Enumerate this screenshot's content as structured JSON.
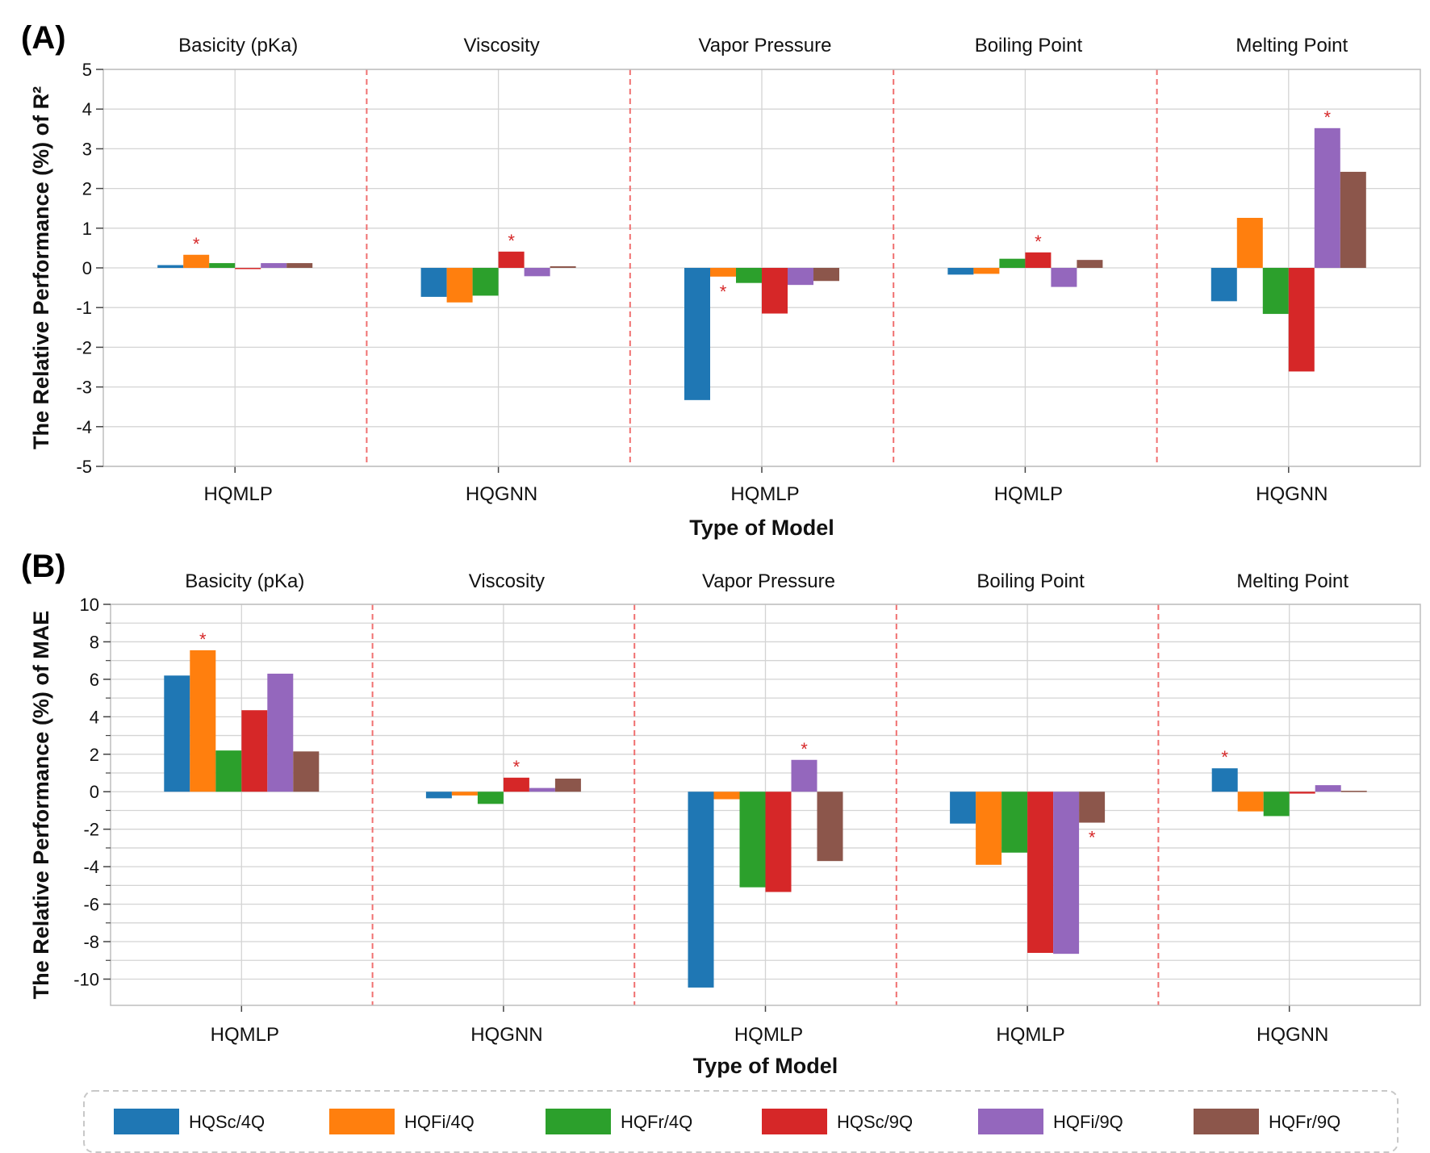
{
  "legend": [
    {
      "name": "HQSc/4Q",
      "color": "#1f77b4"
    },
    {
      "name": "HQFi/4Q",
      "color": "#ff7f0e"
    },
    {
      "name": "HQFr/4Q",
      "color": "#2ca02c"
    },
    {
      "name": "HQSc/9Q",
      "color": "#d62728"
    },
    {
      "name": "HQFi/9Q",
      "color": "#9467bd"
    },
    {
      "name": "HQFr/9Q",
      "color": "#8c564b"
    }
  ],
  "chart_data": [
    {
      "panel": "(A)",
      "type": "bar",
      "ylabel": "The Relative Performance (%) of R²",
      "xlabel": "Type of Model",
      "ylim": [
        -5,
        5
      ],
      "yticks": [
        5,
        4,
        3,
        2,
        1,
        0,
        -1,
        -2,
        -3,
        -4,
        -5
      ],
      "ytick_labels": [
        "5",
        "4",
        "3",
        "2",
        "1",
        "0",
        "-1",
        "-2",
        "-3",
        "-4",
        "-5"
      ],
      "groups": [
        {
          "property": "Basicity (pKa)",
          "model": "HQMLP",
          "values": [
            0.07,
            0.33,
            0.12,
            -0.03,
            0.12,
            0.12
          ],
          "star": 1,
          "star_label": "*"
        },
        {
          "property": "Viscosity",
          "model": "HQGNN",
          "values": [
            -0.73,
            -0.87,
            -0.7,
            0.41,
            -0.21,
            0.04
          ],
          "star": 3,
          "star_label": "*"
        },
        {
          "property": "Vapor Pressure",
          "model": "HQMLP",
          "values": [
            -3.33,
            -0.22,
            -0.38,
            -1.15,
            -0.43,
            -0.33
          ],
          "star": 1,
          "star_label": "*"
        },
        {
          "property": "Boiling Point",
          "model": "HQMLP",
          "values": [
            -0.17,
            -0.15,
            0.23,
            0.39,
            -0.48,
            0.2
          ],
          "star": 3,
          "star_label": "*"
        },
        {
          "property": "Melting Point",
          "model": "HQGNN",
          "values": [
            -0.84,
            1.26,
            -1.16,
            -2.61,
            3.52,
            2.42
          ],
          "star": 4,
          "star_label": "*"
        }
      ]
    },
    {
      "panel": "(B)",
      "type": "bar",
      "ylabel": "The Relative Performance (%) of MAE",
      "xlabel": "Type of Model",
      "ylim": [
        -11.4,
        10
      ],
      "yticks": [
        10,
        8,
        6,
        4,
        2,
        0,
        -2,
        -4,
        -6,
        -8,
        -10
      ],
      "ytick_labels": [
        "10",
        "8",
        "6",
        "4",
        "2",
        "0",
        "-2",
        "-4",
        "-6",
        "-8",
        "-10"
      ],
      "groups": [
        {
          "property": "Basicity (pKa)",
          "model": "HQMLP",
          "values": [
            6.2,
            7.55,
            2.2,
            4.35,
            6.3,
            2.15
          ],
          "star": 1,
          "star_label": "*"
        },
        {
          "property": "Viscosity",
          "model": "HQGNN",
          "values": [
            -0.35,
            -0.2,
            -0.65,
            0.75,
            0.2,
            0.7
          ],
          "star": 3,
          "star_label": "*"
        },
        {
          "property": "Vapor Pressure",
          "model": "HQMLP",
          "values": [
            -10.45,
            -0.4,
            -5.1,
            -5.35,
            1.7,
            -3.7
          ],
          "star": 4,
          "star_label": "*"
        },
        {
          "property": "Boiling Point",
          "model": "HQMLP",
          "values": [
            -1.7,
            -3.9,
            -3.25,
            -8.6,
            -8.65,
            -1.65
          ],
          "star": 5,
          "star_label": "*"
        },
        {
          "property": "Melting Point",
          "model": "HQGNN",
          "values": [
            1.25,
            -1.05,
            -1.3,
            -0.1,
            0.35,
            0.05
          ],
          "star": 0,
          "star_label": "*"
        }
      ]
    }
  ]
}
